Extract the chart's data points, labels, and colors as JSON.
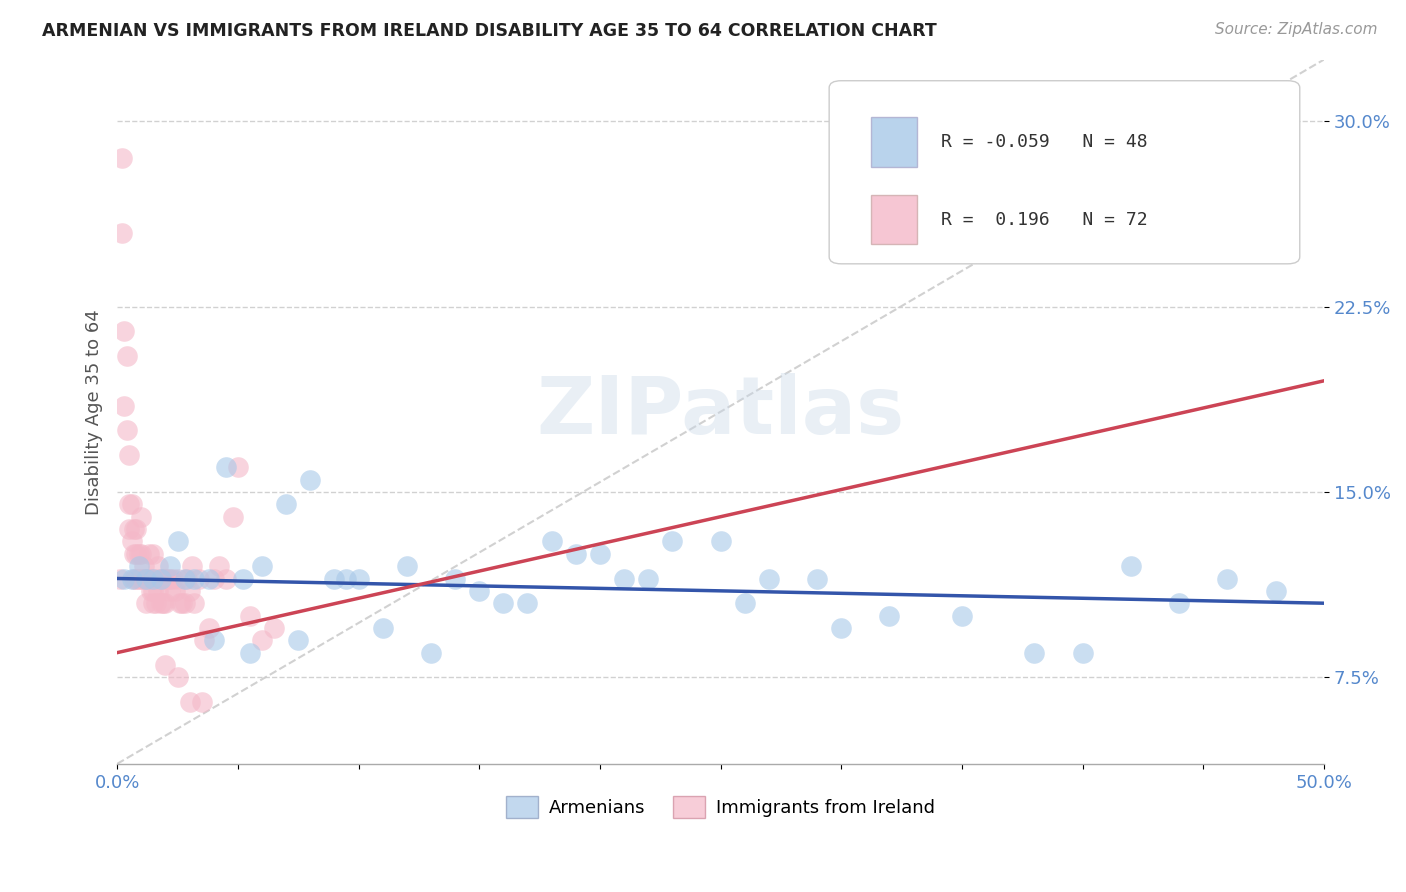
{
  "title": "ARMENIAN VS IMMIGRANTS FROM IRELAND DISABILITY AGE 35 TO 64 CORRELATION CHART",
  "source": "Source: ZipAtlas.com",
  "ylabel": "Disability Age 35 to 64",
  "xlim": [
    0.0,
    0.5
  ],
  "ylim": [
    0.04,
    0.325
  ],
  "xticks": [
    0.0,
    0.05,
    0.1,
    0.15,
    0.2,
    0.25,
    0.3,
    0.35,
    0.4,
    0.45,
    0.5
  ],
  "xticklabels_sparse": {
    "0.0": "0.0%",
    "0.5": "50.0%"
  },
  "yticks": [
    0.075,
    0.15,
    0.225,
    0.3
  ],
  "yticklabels": [
    "7.5%",
    "15.0%",
    "22.5%",
    "30.0%"
  ],
  "legend_labels": [
    "Armenians",
    "Immigrants from Ireland"
  ],
  "r_blue": -0.059,
  "n_blue": 48,
  "r_pink": 0.196,
  "n_pink": 72,
  "blue_color": "#a8c8e8",
  "pink_color": "#f4b8c8",
  "blue_line_color": "#3355aa",
  "pink_line_color": "#cc4455",
  "watermark": "ZIPatlas",
  "title_color": "#222222",
  "axis_color": "#5588cc",
  "blue_scatter": {
    "x": [
      0.003,
      0.006,
      0.009,
      0.012,
      0.015,
      0.018,
      0.022,
      0.025,
      0.028,
      0.032,
      0.038,
      0.045,
      0.052,
      0.06,
      0.07,
      0.08,
      0.09,
      0.1,
      0.12,
      0.14,
      0.16,
      0.18,
      0.2,
      0.22,
      0.25,
      0.27,
      0.3,
      0.32,
      0.35,
      0.38,
      0.4,
      0.42,
      0.44,
      0.46,
      0.48,
      0.04,
      0.055,
      0.075,
      0.095,
      0.11,
      0.13,
      0.15,
      0.17,
      0.19,
      0.21,
      0.23,
      0.26,
      0.29
    ],
    "y": [
      0.115,
      0.115,
      0.12,
      0.115,
      0.115,
      0.115,
      0.12,
      0.13,
      0.115,
      0.115,
      0.115,
      0.16,
      0.115,
      0.12,
      0.145,
      0.155,
      0.115,
      0.115,
      0.12,
      0.115,
      0.105,
      0.13,
      0.125,
      0.115,
      0.13,
      0.115,
      0.095,
      0.1,
      0.1,
      0.085,
      0.085,
      0.12,
      0.105,
      0.115,
      0.11,
      0.09,
      0.085,
      0.09,
      0.115,
      0.095,
      0.085,
      0.11,
      0.105,
      0.125,
      0.115,
      0.13,
      0.105,
      0.115
    ]
  },
  "pink_scatter": {
    "x": [
      0.001,
      0.002,
      0.002,
      0.003,
      0.003,
      0.004,
      0.004,
      0.005,
      0.005,
      0.005,
      0.006,
      0.006,
      0.007,
      0.007,
      0.007,
      0.008,
      0.008,
      0.008,
      0.009,
      0.009,
      0.01,
      0.01,
      0.01,
      0.011,
      0.011,
      0.012,
      0.012,
      0.013,
      0.013,
      0.014,
      0.014,
      0.015,
      0.015,
      0.015,
      0.016,
      0.016,
      0.017,
      0.017,
      0.018,
      0.018,
      0.019,
      0.019,
      0.02,
      0.02,
      0.021,
      0.022,
      0.022,
      0.023,
      0.024,
      0.025,
      0.026,
      0.027,
      0.028,
      0.029,
      0.03,
      0.031,
      0.032,
      0.034,
      0.036,
      0.038,
      0.04,
      0.042,
      0.045,
      0.048,
      0.05,
      0.055,
      0.06,
      0.065,
      0.02,
      0.025,
      0.03,
      0.035
    ],
    "y": [
      0.115,
      0.285,
      0.255,
      0.215,
      0.185,
      0.205,
      0.175,
      0.165,
      0.145,
      0.135,
      0.145,
      0.13,
      0.135,
      0.125,
      0.115,
      0.135,
      0.125,
      0.115,
      0.125,
      0.115,
      0.125,
      0.115,
      0.14,
      0.12,
      0.115,
      0.115,
      0.105,
      0.115,
      0.125,
      0.115,
      0.11,
      0.11,
      0.125,
      0.105,
      0.115,
      0.105,
      0.12,
      0.11,
      0.115,
      0.105,
      0.115,
      0.105,
      0.115,
      0.105,
      0.115,
      0.115,
      0.11,
      0.115,
      0.11,
      0.115,
      0.105,
      0.105,
      0.105,
      0.115,
      0.11,
      0.12,
      0.105,
      0.115,
      0.09,
      0.095,
      0.115,
      0.12,
      0.115,
      0.14,
      0.16,
      0.1,
      0.09,
      0.095,
      0.08,
      0.075,
      0.065,
      0.065
    ]
  },
  "blue_trend_x": [
    0.0,
    0.5
  ],
  "blue_trend_y": [
    0.115,
    0.105
  ],
  "pink_trend_x": [
    0.0,
    0.5
  ],
  "pink_trend_y": [
    0.085,
    0.195
  ],
  "ref_line_x": [
    0.0,
    0.5
  ],
  "ref_line_y": [
    0.04,
    0.325
  ]
}
